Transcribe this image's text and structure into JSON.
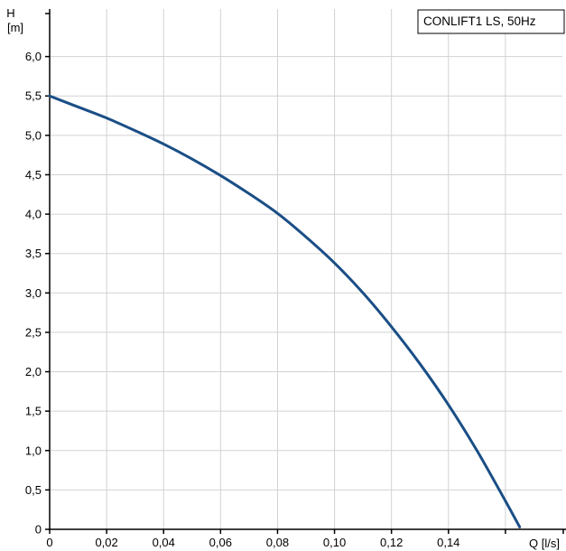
{
  "chart_data": {
    "type": "line",
    "legend": "CONLIFT1 LS, 50Hz",
    "xlabel": "Q [l/s]",
    "ylabel_line1": "H",
    "ylabel_line2": "[m]",
    "xlim": [
      0,
      0.18
    ],
    "ylim": [
      0,
      6.5
    ],
    "x_ticks": [
      0,
      0.02,
      0.04,
      0.06,
      0.08,
      0.1,
      0.12,
      0.14
    ],
    "x_tick_labels": [
      "0",
      "0,02",
      "0,04",
      "0,06",
      "0,08",
      "0,10",
      "0,12",
      "0,14"
    ],
    "x_unlabeled_ticks": [
      0.16
    ],
    "y_ticks": [
      0,
      0.5,
      1.0,
      1.5,
      2.0,
      2.5,
      3.0,
      3.5,
      4.0,
      4.5,
      5.0,
      5.5,
      6.0
    ],
    "y_tick_labels": [
      "0",
      "0,5",
      "1,0",
      "1,5",
      "2,0",
      "2,5",
      "3,0",
      "3,5",
      "4,0",
      "4,5",
      "5,0",
      "5,5",
      "6,0"
    ],
    "grid": true,
    "legend_position": "top-right",
    "series_color": "#1a4e86",
    "series": [
      {
        "x": [
          0,
          0.01,
          0.02,
          0.03,
          0.04,
          0.05,
          0.06,
          0.07,
          0.08,
          0.09,
          0.1,
          0.11,
          0.12,
          0.13,
          0.14,
          0.15,
          0.16,
          0.165
        ],
        "values": [
          5.5,
          5.36,
          5.22,
          5.06,
          4.89,
          4.7,
          4.49,
          4.26,
          4.01,
          3.71,
          3.38,
          3.0,
          2.57,
          2.1,
          1.58,
          1.0,
          0.36,
          0.03
        ]
      }
    ]
  }
}
